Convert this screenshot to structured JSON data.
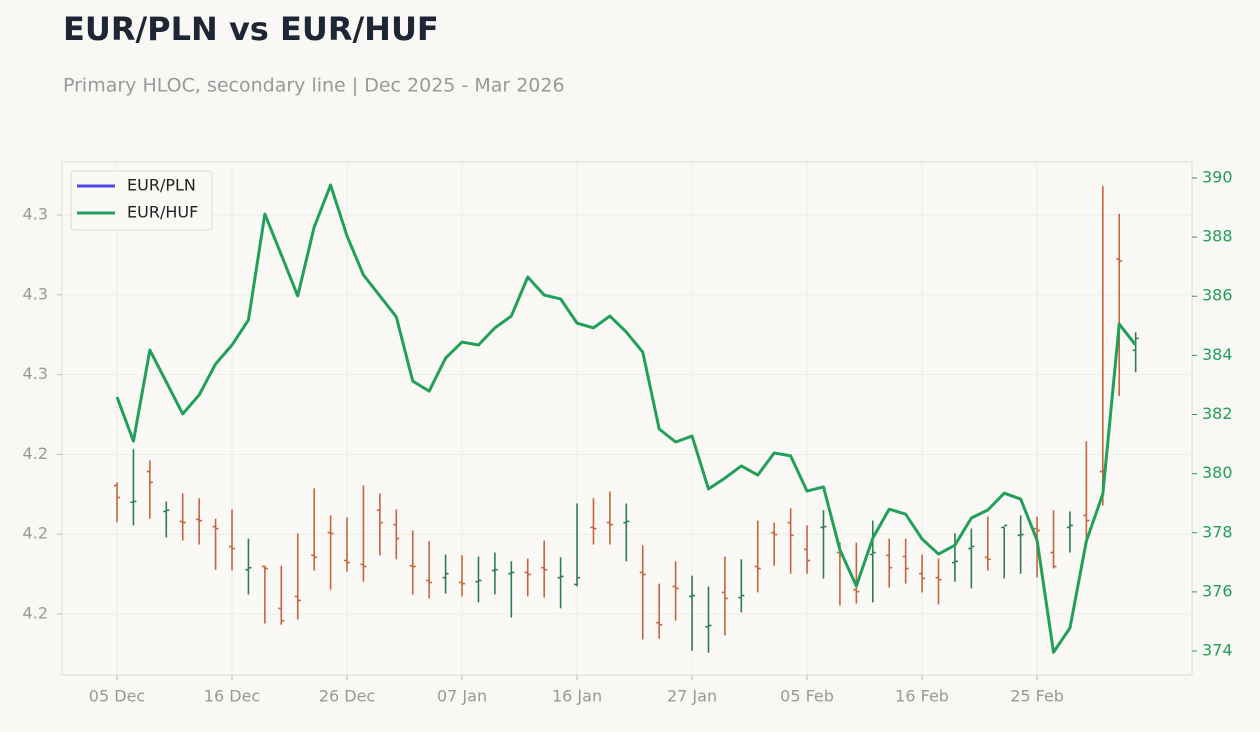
{
  "chart_data": {
    "type": "hloc",
    "title": "EUR/PLN vs EUR/HUF",
    "subtitle": "Primary HLOC, secondary line | Dec 2025 - Mar 2026",
    "categories": [
      "05 Dec",
      null,
      null,
      null,
      null,
      null,
      null,
      "16 Dec",
      null,
      null,
      null,
      null,
      null,
      null,
      "26 Dec",
      null,
      null,
      null,
      null,
      null,
      null,
      "07 Jan",
      null,
      null,
      null,
      null,
      null,
      null,
      "16 Jan",
      null,
      null,
      null,
      null,
      null,
      null,
      "27 Jan",
      null,
      null,
      null,
      null,
      null,
      null,
      "05 Feb",
      null,
      null,
      null,
      null,
      null,
      null,
      "16 Feb",
      null,
      null,
      null,
      null,
      null,
      null,
      "25 Feb",
      null,
      null,
      null,
      null,
      null,
      null
    ],
    "series": [
      {
        "name": "EUR/PLN",
        "type": "hloc",
        "color": "#4f46e5",
        "up_color": "#2e7d4f",
        "down_color": "#c8643c",
        "high": [
          4.233,
          4.2413,
          4.2385,
          4.2282,
          4.2302,
          4.229,
          4.2239,
          4.2262,
          4.2189,
          4.2121,
          4.2121,
          4.2202,
          4.2315,
          4.2247,
          4.2242,
          4.2322,
          4.2302,
          4.2262,
          4.2209,
          4.2182,
          4.2149,
          4.2147,
          4.2144,
          4.2154,
          4.2132,
          4.2139,
          4.2184,
          4.2142,
          4.2277,
          4.229,
          4.2307,
          4.2277,
          4.2172,
          4.2076,
          4.2132,
          4.2096,
          4.2069,
          4.2144,
          4.2137,
          4.2234,
          4.2229,
          4.2265,
          4.2222,
          4.226,
          4.2179,
          4.2179,
          4.2234,
          4.2189,
          4.2189,
          4.2149,
          4.2139,
          4.2202,
          4.2214,
          4.2244,
          4.2219,
          4.2247,
          4.2244,
          4.226,
          4.2257,
          4.2433,
          4.3073,
          4.3003,
          4.2706
        ],
        "low": [
          4.223,
          4.2222,
          4.2239,
          4.2192,
          4.2184,
          4.2174,
          4.2111,
          4.2109,
          4.2049,
          4.1976,
          4.1973,
          4.1986,
          4.2109,
          4.2061,
          4.2106,
          4.2081,
          4.2147,
          4.2137,
          4.2049,
          4.2039,
          4.2051,
          4.2044,
          4.2029,
          4.2049,
          4.1991,
          4.2044,
          4.2041,
          4.2014,
          4.2069,
          4.2174,
          4.2174,
          4.2132,
          4.1936,
          4.1938,
          4.1983,
          4.1908,
          4.1903,
          4.1946,
          4.2004,
          4.2054,
          4.2121,
          4.2101,
          4.2101,
          4.2089,
          4.2021,
          4.2026,
          4.2029,
          4.2066,
          4.2076,
          4.2054,
          4.2024,
          4.2081,
          4.2064,
          4.2109,
          4.2089,
          4.2101,
          4.2091,
          4.2114,
          4.2154,
          4.2177,
          4.2272,
          4.2546,
          4.2606
        ],
        "open": [
          4.2322,
          4.228,
          4.2357,
          4.2257,
          4.2232,
          4.2237,
          4.2219,
          4.2169,
          4.2111,
          4.2119,
          4.2014,
          4.2044,
          4.2147,
          4.2204,
          4.2134,
          4.2124,
          4.226,
          4.2224,
          4.2121,
          4.2084,
          4.2091,
          4.2079,
          4.2081,
          4.2109,
          4.2101,
          4.2104,
          4.2116,
          4.2091,
          4.2074,
          4.2217,
          4.2229,
          4.2229,
          4.2104,
          4.1978,
          4.2069,
          4.2044,
          4.1968,
          4.2054,
          4.2041,
          4.2119,
          4.2204,
          4.2229,
          4.2162,
          4.2217,
          4.2154,
          4.2061,
          4.2149,
          4.2147,
          4.2144,
          4.2101,
          4.2091,
          4.2129,
          4.2164,
          4.2142,
          4.2217,
          4.2197,
          4.2214,
          4.2154,
          4.2217,
          4.2247,
          4.2357,
          4.289,
          4.2661
        ],
        "close": [
          4.2292,
          4.2282,
          4.233,
          4.226,
          4.2229,
          4.2234,
          4.2214,
          4.2164,
          4.2116,
          4.2114,
          4.1983,
          4.2034,
          4.2142,
          4.2202,
          4.2129,
          4.2119,
          4.2229,
          4.2189,
          4.2119,
          4.2079,
          4.2101,
          4.2076,
          4.2084,
          4.2111,
          4.2104,
          4.2099,
          4.2111,
          4.2094,
          4.2091,
          4.2214,
          4.2224,
          4.2232,
          4.2099,
          4.1973,
          4.2064,
          4.2046,
          4.1971,
          4.2039,
          4.2046,
          4.2114,
          4.2199,
          4.2197,
          4.2134,
          4.2219,
          4.2149,
          4.2056,
          4.2154,
          4.2116,
          4.2114,
          4.2089,
          4.2086,
          4.2132,
          4.2169,
          4.2137,
          4.2222,
          4.2199,
          4.2209,
          4.2119,
          4.2222,
          4.2234,
          4.2355,
          4.2885,
          4.2691
        ]
      },
      {
        "name": "EUR/HUF",
        "type": "line",
        "axis": "y2",
        "color": "#22a05a",
        "values": [
          382.59,
          381.1,
          384.18,
          383.1,
          382.02,
          382.66,
          383.71,
          384.35,
          385.2,
          388.78,
          387.4,
          386.01,
          388.34,
          389.76,
          388.04,
          386.72,
          386.01,
          385.3,
          383.13,
          382.79,
          383.91,
          384.45,
          384.35,
          384.93,
          385.33,
          386.65,
          386.04,
          385.91,
          385.09,
          384.93,
          385.33,
          384.79,
          384.11,
          381.51,
          381.07,
          381.27,
          379.48,
          379.85,
          380.26,
          379.95,
          380.7,
          380.6,
          379.41,
          379.55,
          377.42,
          376.2,
          377.82,
          378.8,
          378.63,
          377.79,
          377.28,
          377.58,
          378.5,
          378.77,
          379.34,
          379.14,
          377.75,
          373.96,
          374.78,
          377.72,
          379.31,
          385.06,
          384.35
        ]
      }
    ],
    "ylim": [
      4.1847,
      4.3133
    ],
    "yticks": [
      {
        "value": 4.3,
        "label": "4.3"
      },
      {
        "value": 4.28,
        "label": "4.3"
      },
      {
        "value": 4.26,
        "label": "4.3"
      },
      {
        "value": 4.24,
        "label": "4.2"
      },
      {
        "value": 4.22,
        "label": "4.2"
      },
      {
        "value": 4.2,
        "label": "4.2"
      }
    ],
    "y2lim": [
      373.19,
      390.54
    ],
    "y2ticks": [
      374,
      376,
      378,
      380,
      382,
      384,
      386,
      388,
      390
    ],
    "grid": true,
    "legend": "upper-left"
  }
}
